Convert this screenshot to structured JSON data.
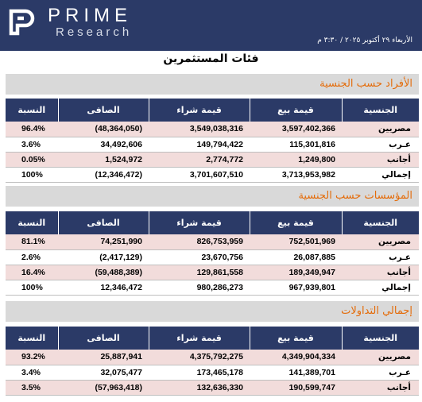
{
  "brand": {
    "name": "PRIME",
    "subtitle": "Research"
  },
  "report_date": "الأربعاء ٢٩ أكتوبر ٢٠٢٥ / ٣:٣٠ م",
  "page_title": "فئات المستثمرين",
  "columns": [
    "النسبة",
    "الصافى",
    "قيمة شراء",
    "قيمة بيع",
    "الجنسية"
  ],
  "sections": [
    {
      "title": "الأفراد حسب الجنسية",
      "rows": [
        {
          "nationality": "مصريين",
          "sell": "3,597,402,366",
          "buy": "3,549,038,316",
          "net": "(48,364,050)",
          "net_negative": true,
          "pct": "96.4%"
        },
        {
          "nationality": "عـرب",
          "sell": "115,301,816",
          "buy": "149,794,422",
          "net": "34,492,606",
          "net_negative": false,
          "pct": "3.6%"
        },
        {
          "nationality": "أجانب",
          "sell": "1,249,800",
          "buy": "2,774,772",
          "net": "1,524,972",
          "net_negative": false,
          "pct": "0.05%"
        },
        {
          "nationality": "إجمالي",
          "sell": "3,713,953,982",
          "buy": "3,701,607,510",
          "net": "(12,346,472)",
          "net_negative": true,
          "pct": "100%"
        }
      ]
    },
    {
      "title": "المؤسسات حسب الجنسية",
      "rows": [
        {
          "nationality": "مصريين",
          "sell": "752,501,969",
          "buy": "826,753,959",
          "net": "74,251,990",
          "net_negative": false,
          "pct": "81.1%"
        },
        {
          "nationality": "عـرب",
          "sell": "26,087,885",
          "buy": "23,670,756",
          "net": "(2,417,129)",
          "net_negative": true,
          "pct": "2.6%"
        },
        {
          "nationality": "أجانب",
          "sell": "189,349,947",
          "buy": "129,861,558",
          "net": "(59,488,389)",
          "net_negative": true,
          "pct": "16.4%"
        },
        {
          "nationality": "إجمالي",
          "sell": "967,939,801",
          "buy": "980,286,273",
          "net": "12,346,472",
          "net_negative": false,
          "pct": "100%"
        }
      ]
    },
    {
      "title": "إجمالي التداولات",
      "rows": [
        {
          "nationality": "مصريين",
          "sell": "4,349,904,334",
          "buy": "4,375,792,275",
          "net": "25,887,941",
          "net_negative": false,
          "pct": "93.2%"
        },
        {
          "nationality": "عـرب",
          "sell": "141,389,701",
          "buy": "173,465,178",
          "net": "32,075,477",
          "net_negative": false,
          "pct": "3.4%"
        },
        {
          "nationality": "أجانب",
          "sell": "190,599,747",
          "buy": "132,636,330",
          "net": "(57,963,418)",
          "net_negative": true,
          "pct": "3.5%"
        }
      ]
    }
  ],
  "colors": {
    "header_bg": "#2b3a67",
    "section_title": "#e46c0a",
    "band_bg": "#d9d9d9",
    "row_shade": "#f2dcdb",
    "negative": "#ff0000"
  }
}
